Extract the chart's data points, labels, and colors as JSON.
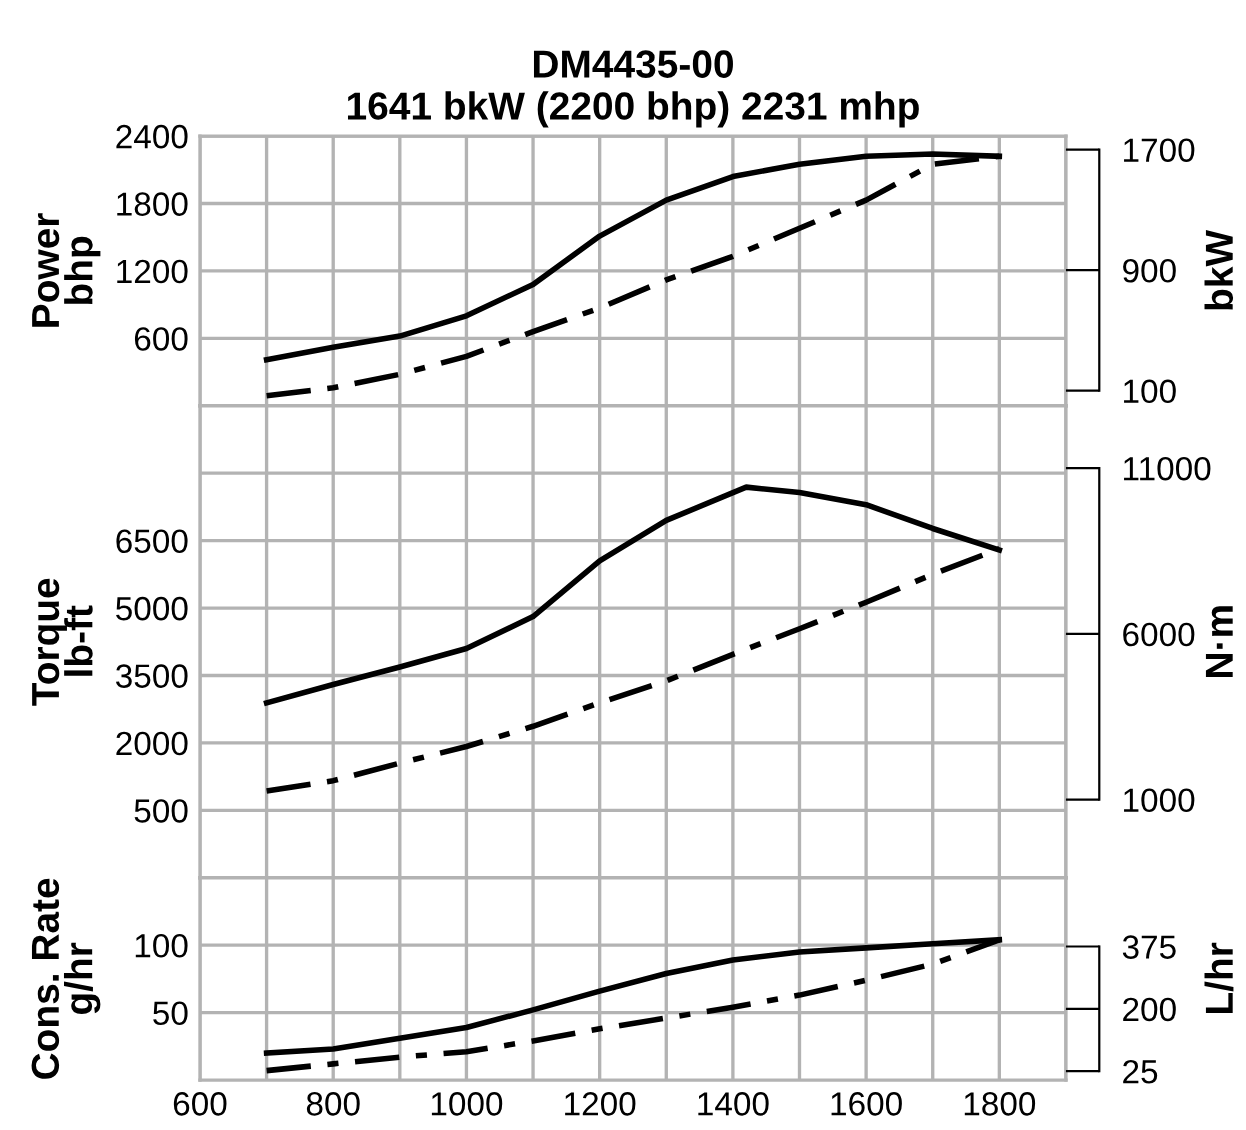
{
  "chart_data": [
    {
      "type": "line",
      "title": "DM4435-00",
      "subtitle": "1641 bkW (2200 bhp) 2231 mhp",
      "ylabel": "Power\nbhp",
      "y2label": "bkW",
      "x": [
        700,
        800,
        900,
        1000,
        1100,
        1200,
        1300,
        1400,
        1500,
        1600,
        1700,
        1800
      ],
      "series": [
        {
          "color": "#000000",
          "line_style": "solid",
          "values": [
            410,
            520,
            620,
            800,
            1080,
            1510,
            1830,
            2040,
            2150,
            2220,
            2240,
            2220
          ]
        },
        {
          "color": "#000000",
          "line_style": "dashed",
          "values": [
            90,
            160,
            280,
            440,
            660,
            870,
            1120,
            1330,
            1580,
            1830,
            2150,
            2220
          ]
        }
      ],
      "xlim": [
        600,
        1900
      ],
      "xticks": [
        600,
        {
          "value": 700,
          "label": null
        },
        800,
        {
          "value": 900,
          "label": null
        },
        1000,
        {
          "value": 1100,
          "label": null
        },
        1200,
        {
          "value": 1300,
          "label": null
        },
        1400,
        {
          "value": 1500,
          "label": null
        },
        1600,
        {
          "value": 1700,
          "label": null
        },
        1800,
        {
          "value": 1900,
          "label": null
        }
      ],
      "ylim": [
        0,
        2400
      ],
      "yticks": [
        {
          "value": 0,
          "label": null
        },
        600,
        1200,
        1800,
        2400
      ],
      "y2lim": [
        0,
        1790
      ],
      "y2ticks": [
        100,
        900,
        1700
      ],
      "grid": true,
      "tick_labels": "y"
    },
    {
      "type": "line",
      "ylabel": "Torque\nlb-ft",
      "y2label": "N·m",
      "x": [
        700,
        800,
        900,
        1000,
        1100,
        1200,
        1300,
        1400,
        1500,
        1600,
        1700,
        1800
      ],
      "series": [
        {
          "color": "#000000",
          "line_style": "solid",
          "x": [
            700,
            800,
            900,
            1000,
            1100,
            1200,
            1300,
            1420,
            1500,
            1600,
            1700,
            1800
          ],
          "values": [
            2890,
            3300,
            3690,
            4100,
            4810,
            6050,
            6950,
            7690,
            7570,
            7300,
            6770,
            6290
          ]
        },
        {
          "color": "#000000",
          "line_style": "dashed",
          "values": [
            930,
            1160,
            1550,
            1920,
            2370,
            2890,
            3380,
            3970,
            4540,
            5130,
            5750,
            6320
          ]
        }
      ],
      "xlim": [
        600,
        1900
      ],
      "xticks": [
        600,
        {
          "value": 700,
          "label": null
        },
        800,
        {
          "value": 900,
          "label": null
        },
        1000,
        {
          "value": 1100,
          "label": null
        },
        1200,
        {
          "value": 1300,
          "label": null
        },
        1400,
        {
          "value": 1500,
          "label": null
        },
        1600,
        {
          "value": 1700,
          "label": null
        },
        1800,
        {
          "value": 1900,
          "label": null
        }
      ],
      "ylim": [
        -1000,
        9500
      ],
      "yticks": [
        500,
        2000,
        3500,
        5000,
        6500,
        {
          "value": 8000,
          "label": null
        }
      ],
      "y2lim": [
        -1356,
        12880
      ],
      "y2ticks": [
        1000,
        6000,
        11000
      ],
      "grid": true,
      "tick_labels": "y"
    },
    {
      "type": "line",
      "ylabel": "Cons. Rate\ng/hr",
      "y2label": "L/hr",
      "x": [
        700,
        800,
        900,
        1000,
        1100,
        1200,
        1300,
        1400,
        1500,
        1600,
        1700,
        1800
      ],
      "series": [
        {
          "color": "#000000",
          "line_style": "solid",
          "values": [
            20,
            23,
            31,
            39,
            52,
            66,
            79,
            89,
            95,
            98,
            101,
            104
          ]
        },
        {
          "color": "#000000",
          "line_style": "dashed",
          "values": [
            7,
            12,
            17,
            21,
            29,
            38,
            46,
            54,
            63,
            74,
            86,
            104
          ]
        }
      ],
      "xlim": [
        600,
        1900
      ],
      "xticks": [
        600,
        {
          "value": 700,
          "label": null
        },
        800,
        {
          "value": 900,
          "label": null
        },
        1000,
        {
          "value": 1100,
          "label": null
        },
        1200,
        {
          "value": 1300,
          "label": null
        },
        1400,
        {
          "value": 1500,
          "label": null
        },
        1600,
        {
          "value": 1700,
          "label": null
        },
        1800,
        {
          "value": 1900,
          "label": null
        }
      ],
      "ylim": [
        0,
        150
      ],
      "yticks": [
        50,
        100
      ],
      "y2lim": [
        0,
        568
      ],
      "y2ticks": [
        25,
        200,
        375
      ],
      "grid": true
    }
  ]
}
